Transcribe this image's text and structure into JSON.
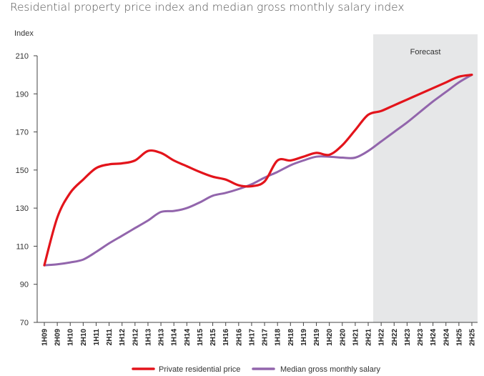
{
  "chart_data": {
    "type": "line",
    "title": "Residential property price index and median gross monthly salary index",
    "ylabel": "Index",
    "xlabel": "",
    "ylim": [
      70,
      210
    ],
    "yticks": [
      70,
      90,
      110,
      130,
      150,
      170,
      190,
      210
    ],
    "grid": false,
    "legend_position": "bottom",
    "forecast_label": "Forecast",
    "forecast_start": "2H21",
    "categories": [
      "1H09",
      "2H09",
      "1H10",
      "2H10",
      "1H11",
      "2H11",
      "1H12",
      "2H12",
      "1H13",
      "2H13",
      "1H14",
      "2H14",
      "1H15",
      "2H15",
      "1H16",
      "2H16",
      "1H17",
      "2H17",
      "1H18",
      "2H18",
      "1H19",
      "2H19",
      "1H20",
      "2H20",
      "1H21",
      "2H21",
      "1H22",
      "2H22",
      "1H23",
      "2H23",
      "1H24",
      "2H24",
      "1H25",
      "2H25"
    ],
    "series": [
      {
        "name": "Private residential price",
        "color": "#e3141b",
        "values": [
          100,
          125,
          138,
          145,
          151,
          153,
          153.5,
          155,
          160,
          159,
          155,
          152,
          149,
          146.5,
          145,
          142,
          141.5,
          144,
          155,
          155,
          157,
          159,
          158,
          163,
          171,
          179,
          181,
          184,
          187,
          190,
          193,
          196,
          199,
          200
        ]
      },
      {
        "name": "Median gross monthly salary",
        "color": "#9265ac",
        "values": [
          100,
          100.5,
          101.5,
          103,
          107,
          111.5,
          115.5,
          119.5,
          123.5,
          128,
          128.5,
          130,
          133,
          136.5,
          138,
          140,
          142.5,
          146,
          149,
          152.5,
          155,
          157,
          157,
          156.5,
          156.5,
          160,
          165,
          170,
          175,
          180.5,
          186,
          191,
          196,
          200
        ]
      }
    ]
  }
}
